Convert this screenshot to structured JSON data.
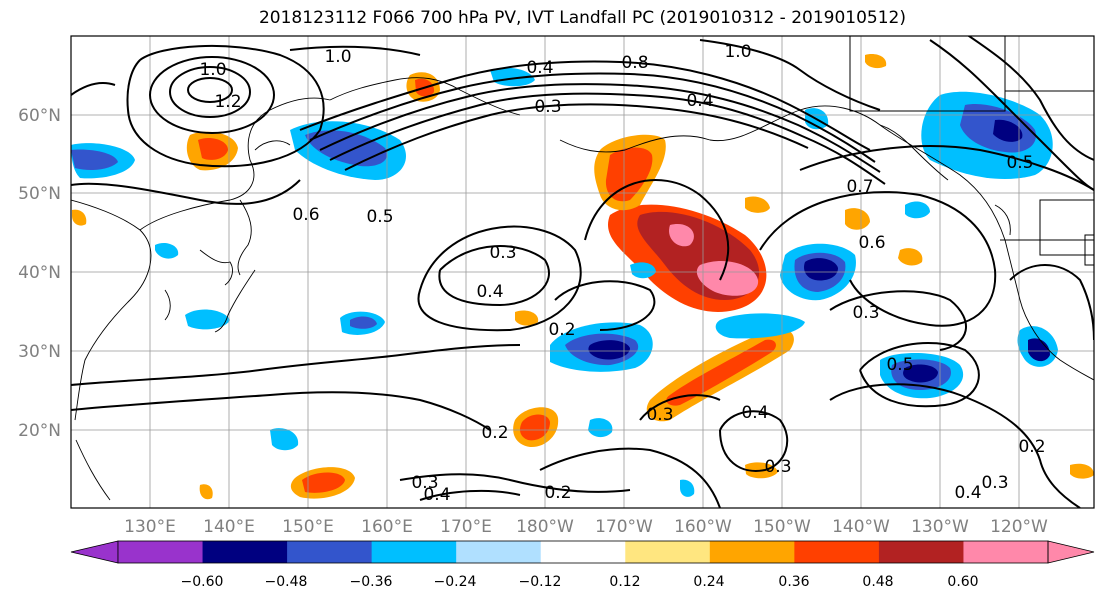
{
  "title": "2018123112 F066 700 hPa PV, IVT Landfall PC (2019010312 - 2019010512)",
  "map": {
    "lat_labels": [
      "60°N",
      "50°N",
      "40°N",
      "30°N",
      "20°N"
    ],
    "lon_labels": [
      "130°E",
      "140°E",
      "150°E",
      "160°E",
      "170°E",
      "180°W",
      "170°W",
      "160°W",
      "150°W",
      "140°W",
      "130°W",
      "120°W"
    ],
    "contour_labels": [
      "1.0",
      "1.0",
      "1.0",
      "1.2",
      "0.8",
      "0.4",
      "0.3",
      "0.6",
      "0.5",
      "0.3",
      "0.4",
      "0.2",
      "0.3",
      "0.2",
      "0.2",
      "0.3",
      "0.4",
      "0.7",
      "0.6",
      "0.3",
      "0.5",
      "0.4",
      "0.2",
      "0.4",
      "0.5",
      "0.3",
      "0.4",
      "0.3"
    ]
  },
  "colorbar": {
    "ticks": [
      "−0.60",
      "−0.48",
      "−0.36",
      "−0.24",
      "−0.12",
      "0.12",
      "0.24",
      "0.36",
      "0.48",
      "0.60"
    ],
    "colors": [
      "#9933cc",
      "#000080",
      "#3355cc",
      "#00bfff",
      "#b0e0ff",
      "#ffffff",
      "#ffe680",
      "#ffa500",
      "#ff4000",
      "#b22222",
      "#ff88aa"
    ]
  }
}
